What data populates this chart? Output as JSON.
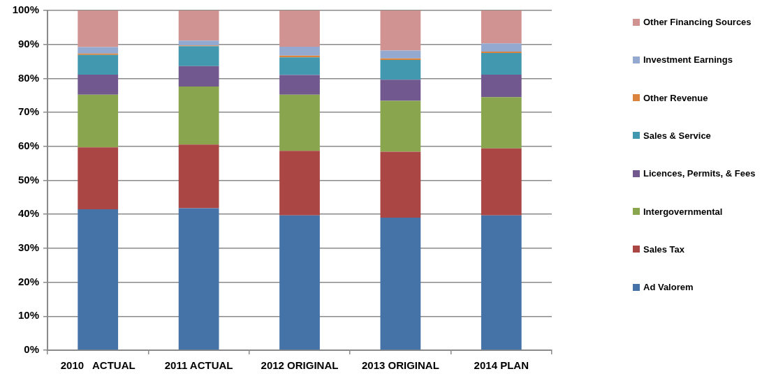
{
  "chart_data": {
    "type": "bar",
    "stacked": true,
    "categories": [
      "2010   ACTUAL",
      "2011 ACTUAL",
      "2012 ORIGINAL",
      "2013 ORIGINAL",
      "2014 PLAN"
    ],
    "series": [
      {
        "name": "Ad Valorem",
        "color": "#4572a7",
        "values": [
          41.5,
          41.8,
          39.7,
          39.0,
          39.7
        ]
      },
      {
        "name": "Sales Tax",
        "color": "#aa4643",
        "values": [
          18.2,
          18.7,
          19.0,
          19.4,
          19.7
        ]
      },
      {
        "name": "Intergovernmental",
        "color": "#89a54e",
        "values": [
          15.5,
          17.1,
          16.5,
          15.0,
          15.1
        ]
      },
      {
        "name": "Licences, Permits, & Fees",
        "color": "#71588f",
        "values": [
          5.9,
          6.0,
          5.8,
          6.2,
          6.6
        ]
      },
      {
        "name": "Sales & Service",
        "color": "#4198af",
        "values": [
          5.8,
          5.9,
          5.2,
          5.8,
          6.4
        ]
      },
      {
        "name": "Other Revenue",
        "color": "#db843d",
        "values": [
          0.4,
          0.2,
          0.5,
          0.5,
          0.4
        ]
      },
      {
        "name": "Investment Earnings",
        "color": "#93a9cf",
        "values": [
          1.9,
          1.4,
          2.6,
          2.3,
          2.4
        ]
      },
      {
        "name": "Other Financing Sources",
        "color": "#d19392",
        "values": [
          10.8,
          8.9,
          10.7,
          11.8,
          9.7
        ]
      }
    ],
    "ylim": [
      0,
      100
    ],
    "yticks": [
      {
        "value": 0,
        "label": "0%"
      },
      {
        "value": 10,
        "label": "10%"
      },
      {
        "value": 20,
        "label": "20%"
      },
      {
        "value": 30,
        "label": "30%"
      },
      {
        "value": 40,
        "label": "40%"
      },
      {
        "value": 50,
        "label": "50%"
      },
      {
        "value": 60,
        "label": "60%"
      },
      {
        "value": 70,
        "label": "70%"
      },
      {
        "value": 80,
        "label": "80%"
      },
      {
        "value": 90,
        "label": "90%"
      },
      {
        "value": 100,
        "label": "100%"
      }
    ],
    "grid": "y",
    "legend": "right"
  }
}
